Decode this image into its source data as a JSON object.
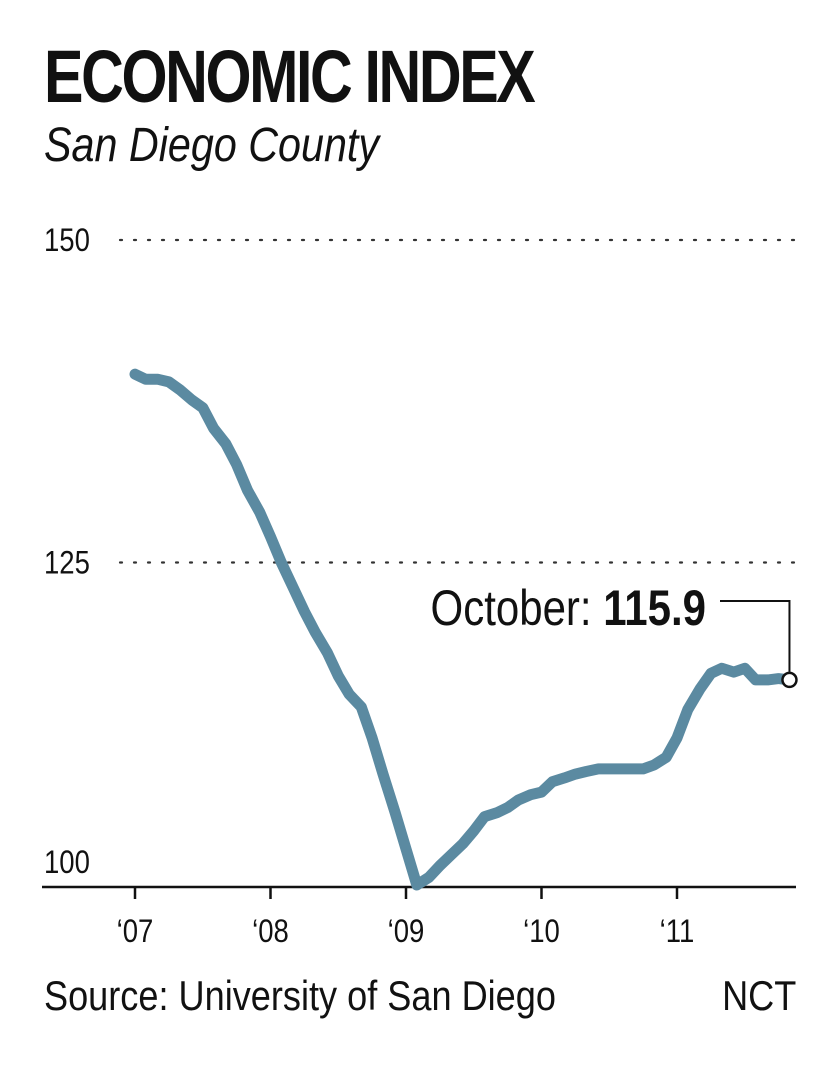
{
  "header": {
    "title": "ECONOMIC INDEX",
    "subtitle": "San Diego County"
  },
  "footer": {
    "source": "Source: University of San Diego",
    "credit": "NCT"
  },
  "colors": {
    "line": "#5b8aa1",
    "text": "#111111",
    "grid": "#333333"
  },
  "chart_data": {
    "type": "line",
    "title": "ECONOMIC INDEX",
    "subtitle": "San Diego County",
    "xlabel": "",
    "ylabel": "",
    "ylim": [
      100,
      150
    ],
    "yticks": [
      100,
      125,
      150
    ],
    "ytick_labels": [
      "100",
      "125",
      "150"
    ],
    "xlim": [
      2007,
      2011.9
    ],
    "xticks": [
      2007,
      2008,
      2009,
      2010,
      2011
    ],
    "xtick_labels": [
      "‘07",
      "‘08",
      "‘09",
      "‘10",
      "‘11"
    ],
    "grid": "dotted horizontal",
    "series": [
      {
        "x": [
          2007.0,
          2007.08,
          2007.17,
          2007.25,
          2007.33,
          2007.42,
          2007.5,
          2007.58,
          2007.67,
          2007.75,
          2007.83,
          2007.92,
          2008.0,
          2008.08,
          2008.17,
          2008.25,
          2008.33,
          2008.42,
          2008.5,
          2008.58,
          2008.67,
          2008.75,
          2008.83,
          2008.92,
          2009.0,
          2009.08,
          2009.17,
          2009.25,
          2009.33,
          2009.42,
          2009.5,
          2009.58,
          2009.67,
          2009.75,
          2009.83,
          2009.92,
          2010.0,
          2010.08,
          2010.17,
          2010.25,
          2010.33,
          2010.42,
          2010.5,
          2010.58,
          2010.67,
          2010.75,
          2010.83,
          2010.92,
          2011.0,
          2011.08,
          2011.17,
          2011.25,
          2011.33,
          2011.42,
          2011.5,
          2011.58,
          2011.67,
          2011.75,
          2011.83
        ],
        "values": [
          139.6,
          139.2,
          139.2,
          139.0,
          138.4,
          137.6,
          137.0,
          135.4,
          134.2,
          132.6,
          130.6,
          128.9,
          127.0,
          125.0,
          123.0,
          121.2,
          119.6,
          118.0,
          116.2,
          114.8,
          113.8,
          111.4,
          108.6,
          105.6,
          102.8,
          100.0,
          100.6,
          101.5,
          102.3,
          103.2,
          104.2,
          105.3,
          105.6,
          106.0,
          106.6,
          107.0,
          107.2,
          108.0,
          108.3,
          108.6,
          108.8,
          109.0,
          109.0,
          109.0,
          109.0,
          109.0,
          109.3,
          109.9,
          111.4,
          113.6,
          115.2,
          116.4,
          116.8,
          116.5,
          116.8,
          115.9,
          115.9,
          116.0,
          115.9
        ]
      }
    ],
    "annotation": {
      "label": "October: ",
      "value": "115.9"
    }
  }
}
